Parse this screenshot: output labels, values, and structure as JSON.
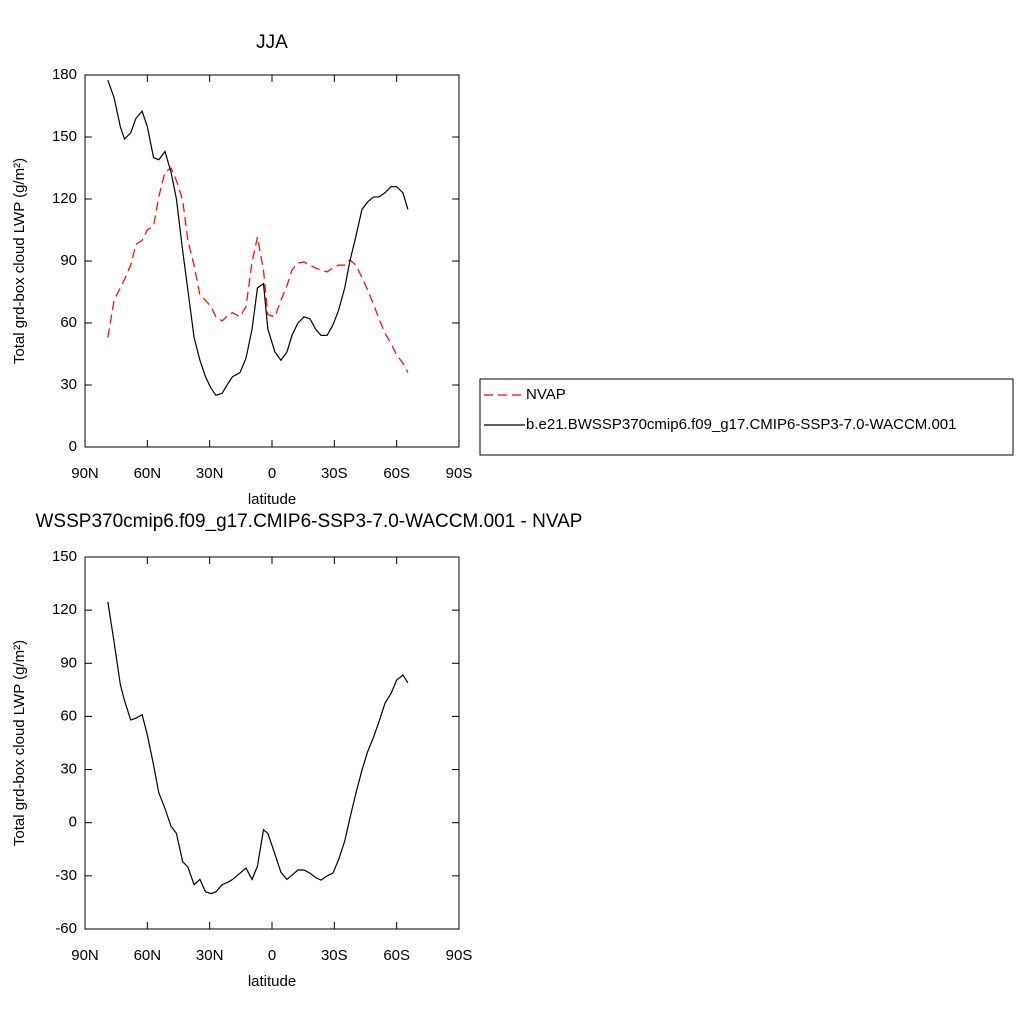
{
  "chart_data": [
    {
      "type": "line",
      "title": "JJA",
      "x_label": "latitude",
      "y_label": "Total grd-box cloud LWP (g/m²)",
      "x": [
        79,
        76,
        73,
        71,
        68,
        65.5,
        62.5,
        60,
        57,
        54.5,
        51.5,
        48.6,
        46,
        43,
        40.5,
        37.5,
        34.7,
        32,
        29.4,
        27,
        24,
        21,
        19,
        15.4,
        12.5,
        9.6,
        7,
        4.1,
        2,
        -1.4,
        -4.3,
        -7.2,
        -9.6,
        -12.5,
        -15.4,
        -18.3,
        -21,
        -23.6,
        -26.5,
        -29.3,
        -32,
        -35,
        -37.5,
        -40.4,
        -43.3,
        -46,
        -48.9,
        -51.5,
        -54.4,
        -57.3,
        -60,
        -63,
        -65.4
      ],
      "series": [
        {
          "name": "NVAP",
          "color": "#ff0000",
          "linestyle": "dashed",
          "values": [
            53,
            71,
            77,
            81,
            88,
            98,
            100,
            105,
            107,
            121,
            133,
            135,
            129,
            119.5,
            100,
            88,
            73.5,
            71,
            68,
            63,
            61,
            64,
            65,
            63,
            68,
            89.5,
            101.6,
            85.6,
            64,
            63,
            71,
            78,
            85.6,
            89,
            89.5,
            88,
            86.6,
            85.6,
            84.7,
            86.6,
            88,
            88,
            90.5,
            88,
            82,
            76,
            69,
            62,
            55,
            50,
            44.5,
            40.6,
            36
          ]
        },
        {
          "name": "b.e21.BWSSP370cmip6.f09_g17.CMIP6-SSP3-7.0-WACCM.001",
          "color": "#000000",
          "linestyle": "solid",
          "values": [
            177.5,
            169,
            155,
            149,
            152,
            159,
            162.5,
            155,
            140,
            139,
            143,
            133,
            120,
            95,
            76,
            53,
            42,
            34,
            28.5,
            25,
            26,
            31,
            34,
            36,
            43,
            57,
            77,
            79,
            57,
            46,
            42,
            46,
            54,
            60,
            63,
            62,
            57,
            54,
            54,
            59,
            66,
            77,
            90,
            102,
            115,
            118.5,
            121,
            121,
            123,
            126,
            126,
            123,
            115
          ]
        }
      ],
      "xlim": [
        90,
        -90
      ],
      "xticks": [
        {
          "value": 90,
          "label": "90N"
        },
        {
          "value": 60,
          "label": "60N"
        },
        {
          "value": 30,
          "label": "30N"
        },
        0,
        {
          "value": -30,
          "label": "30S"
        },
        {
          "value": -60,
          "label": "60S"
        },
        {
          "value": -90,
          "label": "90S"
        }
      ],
      "ylim": [
        0,
        180
      ],
      "yticks": [
        0,
        30,
        60,
        90,
        120,
        150,
        180
      ],
      "legend": "right"
    },
    {
      "type": "line",
      "title": "WSSP370cmip6.f09_g17.CMIP6-SSP3-7.0-WACCM.001 - NVAP",
      "x_label": "latitude",
      "y_label": "Total grd-box cloud LWP (g/m²)",
      "x": [
        79,
        76,
        73,
        71,
        68,
        65.5,
        62.5,
        60,
        57,
        54.5,
        51.5,
        48.6,
        46,
        43,
        40.5,
        37.5,
        34.7,
        32,
        29.4,
        27,
        24,
        21,
        19,
        15.4,
        12.5,
        9.6,
        7,
        4.1,
        2,
        -1.4,
        -4.3,
        -7.2,
        -9.6,
        -12.5,
        -15.4,
        -18.3,
        -21,
        -23.6,
        -26.5,
        -29.3,
        -32,
        -35,
        -37.5,
        -40.4,
        -43.3,
        -46,
        -48.9,
        -51.5,
        -54.4,
        -57.3,
        -60,
        -63,
        -65.4
      ],
      "series": [
        {
          "color": "#000000",
          "linestyle": "solid",
          "values": [
            124.6,
            102,
            78,
            69,
            58,
            59,
            61,
            49.5,
            32.6,
            17,
            8,
            -2,
            -6,
            -22,
            -25,
            -35,
            -32,
            -39,
            -40,
            -39,
            -35,
            -33.5,
            -32,
            -28.5,
            -25.6,
            -32,
            -24.5,
            -4,
            -6,
            -17.7,
            -28,
            -32,
            -29.6,
            -26.7,
            -26.7,
            -28.5,
            -31,
            -32.4,
            -30,
            -28.5,
            -21,
            -10.4,
            2.6,
            16.7,
            29.7,
            40,
            48.4,
            57,
            67.5,
            73,
            80.5,
            83.4,
            79
          ]
        }
      ],
      "xlim": [
        90,
        -90
      ],
      "xticks": [
        {
          "value": 90,
          "label": "90N"
        },
        {
          "value": 60,
          "label": "60N"
        },
        {
          "value": 30,
          "label": "30N"
        },
        0,
        {
          "value": -30,
          "label": "30S"
        },
        {
          "value": -60,
          "label": "60S"
        },
        {
          "value": -90,
          "label": "90S"
        }
      ],
      "ylim": [
        -60,
        150
      ],
      "yticks": [
        -60,
        -30,
        0,
        30,
        60,
        90,
        120,
        150
      ]
    }
  ]
}
